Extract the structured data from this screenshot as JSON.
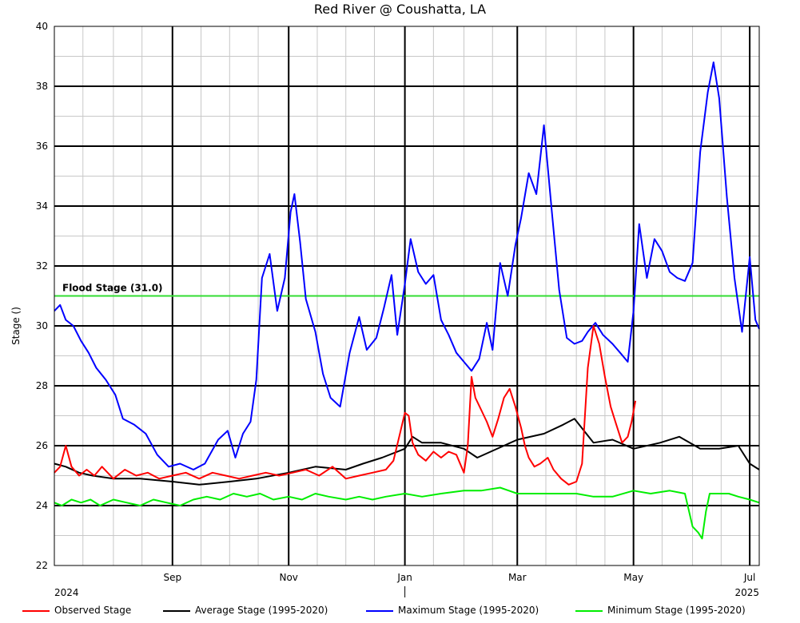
{
  "chart_data": {
    "type": "line",
    "title": "Red River @ Coushatta, LA",
    "ylabel": "Stage ()",
    "xlabel": "",
    "ylim": [
      22,
      40
    ],
    "yticks": [
      22,
      24,
      26,
      28,
      30,
      32,
      34,
      36,
      38,
      40
    ],
    "grid": true,
    "legend_position": "bottom",
    "x_start": "2024-07-01",
    "x_end": "2025-07-06",
    "month_tick_labels": [
      {
        "date": "2024-09-01",
        "label": "Sep"
      },
      {
        "date": "2024-11-01",
        "label": "Nov"
      },
      {
        "date": "2025-01-01",
        "label": "Jan"
      },
      {
        "date": "2025-03-01",
        "label": "Mar"
      },
      {
        "date": "2025-05-01",
        "label": "May"
      },
      {
        "date": "2025-07-01",
        "label": "Jul"
      }
    ],
    "year_labels": [
      {
        "date": "2024-07-01",
        "label": "2024",
        "align": "start"
      },
      {
        "date": "2025-07-06",
        "label": "2025",
        "align": "end"
      }
    ],
    "reference_lines": [
      {
        "label": "Flood Stage (31.0)",
        "value": 31.0,
        "color": "#33dd33"
      }
    ],
    "series": [
      {
        "name": "Observed Stage",
        "color": "#ff0000",
        "points": [
          [
            "2024-07-01",
            25.1
          ],
          [
            "2024-07-04",
            25.3
          ],
          [
            "2024-07-07",
            26.0
          ],
          [
            "2024-07-10",
            25.3
          ],
          [
            "2024-07-14",
            25.0
          ],
          [
            "2024-07-18",
            25.2
          ],
          [
            "2024-07-22",
            25.0
          ],
          [
            "2024-07-26",
            25.3
          ],
          [
            "2024-08-01",
            24.9
          ],
          [
            "2024-08-07",
            25.2
          ],
          [
            "2024-08-13",
            25.0
          ],
          [
            "2024-08-19",
            25.1
          ],
          [
            "2024-08-25",
            24.9
          ],
          [
            "2024-09-01",
            25.0
          ],
          [
            "2024-09-08",
            25.1
          ],
          [
            "2024-09-15",
            24.9
          ],
          [
            "2024-09-22",
            25.1
          ],
          [
            "2024-09-29",
            25.0
          ],
          [
            "2024-10-06",
            24.9
          ],
          [
            "2024-10-13",
            25.0
          ],
          [
            "2024-10-20",
            25.1
          ],
          [
            "2024-10-27",
            25.0
          ],
          [
            "2024-11-03",
            25.1
          ],
          [
            "2024-11-10",
            25.2
          ],
          [
            "2024-11-17",
            25.0
          ],
          [
            "2024-11-24",
            25.3
          ],
          [
            "2024-12-01",
            24.9
          ],
          [
            "2024-12-08",
            25.0
          ],
          [
            "2024-12-15",
            25.1
          ],
          [
            "2024-12-22",
            25.2
          ],
          [
            "2024-12-26",
            25.5
          ],
          [
            "2024-12-29",
            26.3
          ],
          [
            "2025-01-01",
            27.1
          ],
          [
            "2025-01-03",
            27.0
          ],
          [
            "2025-01-05",
            26.1
          ],
          [
            "2025-01-08",
            25.7
          ],
          [
            "2025-01-12",
            25.5
          ],
          [
            "2025-01-16",
            25.8
          ],
          [
            "2025-01-20",
            25.6
          ],
          [
            "2025-01-24",
            25.8
          ],
          [
            "2025-01-28",
            25.7
          ],
          [
            "2025-02-01",
            25.1
          ],
          [
            "2025-02-03",
            26.0
          ],
          [
            "2025-02-05",
            28.3
          ],
          [
            "2025-02-07",
            27.6
          ],
          [
            "2025-02-10",
            27.2
          ],
          [
            "2025-02-13",
            26.8
          ],
          [
            "2025-02-16",
            26.3
          ],
          [
            "2025-02-19",
            26.9
          ],
          [
            "2025-02-22",
            27.6
          ],
          [
            "2025-02-25",
            27.9
          ],
          [
            "2025-02-28",
            27.3
          ],
          [
            "2025-03-03",
            26.6
          ],
          [
            "2025-03-05",
            26.0
          ],
          [
            "2025-03-07",
            25.6
          ],
          [
            "2025-03-10",
            25.3
          ],
          [
            "2025-03-13",
            25.4
          ],
          [
            "2025-03-17",
            25.6
          ],
          [
            "2025-03-20",
            25.2
          ],
          [
            "2025-03-24",
            24.9
          ],
          [
            "2025-03-28",
            24.7
          ],
          [
            "2025-04-01",
            24.8
          ],
          [
            "2025-04-04",
            25.4
          ],
          [
            "2025-04-07",
            28.6
          ],
          [
            "2025-04-10",
            30.0
          ],
          [
            "2025-04-13",
            29.4
          ],
          [
            "2025-04-16",
            28.3
          ],
          [
            "2025-04-19",
            27.3
          ],
          [
            "2025-04-22",
            26.7
          ],
          [
            "2025-04-25",
            26.1
          ],
          [
            "2025-04-28",
            26.3
          ],
          [
            "2025-04-30",
            26.8
          ],
          [
            "2025-05-02",
            27.5
          ]
        ]
      },
      {
        "name": "Average Stage (1995-2020)",
        "color": "#000000",
        "points": [
          [
            "2024-07-01",
            25.4
          ],
          [
            "2024-07-07",
            25.3
          ],
          [
            "2024-07-14",
            25.1
          ],
          [
            "2024-07-21",
            25.0
          ],
          [
            "2024-08-01",
            24.9
          ],
          [
            "2024-08-15",
            24.9
          ],
          [
            "2024-09-01",
            24.8
          ],
          [
            "2024-09-15",
            24.7
          ],
          [
            "2024-10-01",
            24.8
          ],
          [
            "2024-10-15",
            24.9
          ],
          [
            "2024-11-01",
            25.1
          ],
          [
            "2024-11-15",
            25.3
          ],
          [
            "2024-12-01",
            25.2
          ],
          [
            "2024-12-10",
            25.4
          ],
          [
            "2024-12-20",
            25.6
          ],
          [
            "2025-01-01",
            25.9
          ],
          [
            "2025-01-05",
            26.3
          ],
          [
            "2025-01-10",
            26.1
          ],
          [
            "2025-01-20",
            26.1
          ],
          [
            "2025-02-01",
            25.9
          ],
          [
            "2025-02-08",
            25.6
          ],
          [
            "2025-02-15",
            25.8
          ],
          [
            "2025-03-01",
            26.2
          ],
          [
            "2025-03-15",
            26.4
          ],
          [
            "2025-03-25",
            26.7
          ],
          [
            "2025-03-31",
            26.9
          ],
          [
            "2025-04-05",
            26.5
          ],
          [
            "2025-04-10",
            26.1
          ],
          [
            "2025-04-20",
            26.2
          ],
          [
            "2025-05-01",
            25.9
          ],
          [
            "2025-05-15",
            26.1
          ],
          [
            "2025-05-25",
            26.3
          ],
          [
            "2025-06-05",
            25.9
          ],
          [
            "2025-06-15",
            25.9
          ],
          [
            "2025-06-25",
            26.0
          ],
          [
            "2025-07-01",
            25.4
          ],
          [
            "2025-07-06",
            25.2
          ]
        ]
      },
      {
        "name": "Maximum Stage (1995-2020)",
        "color": "#0000ff",
        "points": [
          [
            "2024-07-01",
            30.5
          ],
          [
            "2024-07-04",
            30.7
          ],
          [
            "2024-07-07",
            30.2
          ],
          [
            "2024-07-11",
            30.0
          ],
          [
            "2024-07-15",
            29.5
          ],
          [
            "2024-07-19",
            29.1
          ],
          [
            "2024-07-23",
            28.6
          ],
          [
            "2024-07-28",
            28.2
          ],
          [
            "2024-08-02",
            27.7
          ],
          [
            "2024-08-06",
            26.9
          ],
          [
            "2024-08-12",
            26.7
          ],
          [
            "2024-08-18",
            26.4
          ],
          [
            "2024-08-24",
            25.7
          ],
          [
            "2024-08-30",
            25.3
          ],
          [
            "2024-09-05",
            25.4
          ],
          [
            "2024-09-12",
            25.2
          ],
          [
            "2024-09-18",
            25.4
          ],
          [
            "2024-09-25",
            26.2
          ],
          [
            "2024-09-30",
            26.5
          ],
          [
            "2024-10-04",
            25.6
          ],
          [
            "2024-10-08",
            26.4
          ],
          [
            "2024-10-12",
            26.8
          ],
          [
            "2024-10-15",
            28.2
          ],
          [
            "2024-10-18",
            31.6
          ],
          [
            "2024-10-22",
            32.4
          ],
          [
            "2024-10-26",
            30.5
          ],
          [
            "2024-10-30",
            31.6
          ],
          [
            "2024-11-02",
            33.8
          ],
          [
            "2024-11-04",
            34.4
          ],
          [
            "2024-11-07",
            32.8
          ],
          [
            "2024-11-10",
            30.9
          ],
          [
            "2024-11-15",
            29.8
          ],
          [
            "2024-11-19",
            28.4
          ],
          [
            "2024-11-23",
            27.6
          ],
          [
            "2024-11-28",
            27.3
          ],
          [
            "2024-12-03",
            29.1
          ],
          [
            "2024-12-08",
            30.3
          ],
          [
            "2024-12-12",
            29.2
          ],
          [
            "2024-12-17",
            29.6
          ],
          [
            "2024-12-21",
            30.6
          ],
          [
            "2024-12-25",
            31.7
          ],
          [
            "2024-12-28",
            29.7
          ],
          [
            "2025-01-01",
            31.4
          ],
          [
            "2025-01-04",
            32.9
          ],
          [
            "2025-01-08",
            31.8
          ],
          [
            "2025-01-12",
            31.4
          ],
          [
            "2025-01-16",
            31.7
          ],
          [
            "2025-01-20",
            30.2
          ],
          [
            "2025-01-24",
            29.7
          ],
          [
            "2025-01-28",
            29.1
          ],
          [
            "2025-02-01",
            28.8
          ],
          [
            "2025-02-05",
            28.5
          ],
          [
            "2025-02-09",
            28.9
          ],
          [
            "2025-02-13",
            30.1
          ],
          [
            "2025-02-16",
            29.2
          ],
          [
            "2025-02-20",
            32.1
          ],
          [
            "2025-02-24",
            31.0
          ],
          [
            "2025-02-28",
            32.7
          ],
          [
            "2025-03-03",
            33.6
          ],
          [
            "2025-03-07",
            35.1
          ],
          [
            "2025-03-11",
            34.4
          ],
          [
            "2025-03-15",
            36.7
          ],
          [
            "2025-03-19",
            33.9
          ],
          [
            "2025-03-23",
            31.2
          ],
          [
            "2025-03-27",
            29.6
          ],
          [
            "2025-03-31",
            29.4
          ],
          [
            "2025-04-04",
            29.5
          ],
          [
            "2025-04-07",
            29.8
          ],
          [
            "2025-04-11",
            30.1
          ],
          [
            "2025-04-15",
            29.7
          ],
          [
            "2025-04-20",
            29.4
          ],
          [
            "2025-04-24",
            29.1
          ],
          [
            "2025-04-28",
            28.8
          ],
          [
            "2025-05-01",
            30.5
          ],
          [
            "2025-05-04",
            33.4
          ],
          [
            "2025-05-08",
            31.6
          ],
          [
            "2025-05-12",
            32.9
          ],
          [
            "2025-05-16",
            32.5
          ],
          [
            "2025-05-20",
            31.8
          ],
          [
            "2025-05-24",
            31.6
          ],
          [
            "2025-05-28",
            31.5
          ],
          [
            "2025-06-01",
            32.1
          ],
          [
            "2025-06-05",
            35.8
          ],
          [
            "2025-06-09",
            37.8
          ],
          [
            "2025-06-12",
            38.8
          ],
          [
            "2025-06-15",
            37.6
          ],
          [
            "2025-06-19",
            34.3
          ],
          [
            "2025-06-23",
            31.6
          ],
          [
            "2025-06-27",
            29.8
          ],
          [
            "2025-07-01",
            32.3
          ],
          [
            "2025-07-04",
            30.2
          ],
          [
            "2025-07-06",
            29.9
          ]
        ]
      },
      {
        "name": "Minimum Stage (1995-2020)",
        "color": "#00ee00",
        "points": [
          [
            "2024-07-01",
            24.1
          ],
          [
            "2024-07-05",
            24.0
          ],
          [
            "2024-07-10",
            24.2
          ],
          [
            "2024-07-15",
            24.1
          ],
          [
            "2024-07-20",
            24.2
          ],
          [
            "2024-07-25",
            24.0
          ],
          [
            "2024-08-01",
            24.2
          ],
          [
            "2024-08-08",
            24.1
          ],
          [
            "2024-08-15",
            24.0
          ],
          [
            "2024-08-22",
            24.2
          ],
          [
            "2024-08-29",
            24.1
          ],
          [
            "2024-09-05",
            24.0
          ],
          [
            "2024-09-12",
            24.2
          ],
          [
            "2024-09-19",
            24.3
          ],
          [
            "2024-09-26",
            24.2
          ],
          [
            "2024-10-03",
            24.4
          ],
          [
            "2024-10-10",
            24.3
          ],
          [
            "2024-10-17",
            24.4
          ],
          [
            "2024-10-24",
            24.2
          ],
          [
            "2024-11-01",
            24.3
          ],
          [
            "2024-11-08",
            24.2
          ],
          [
            "2024-11-15",
            24.4
          ],
          [
            "2024-11-22",
            24.3
          ],
          [
            "2024-12-01",
            24.2
          ],
          [
            "2024-12-08",
            24.3
          ],
          [
            "2024-12-15",
            24.2
          ],
          [
            "2024-12-22",
            24.3
          ],
          [
            "2025-01-01",
            24.4
          ],
          [
            "2025-01-10",
            24.3
          ],
          [
            "2025-01-20",
            24.4
          ],
          [
            "2025-02-01",
            24.5
          ],
          [
            "2025-02-10",
            24.5
          ],
          [
            "2025-02-20",
            24.6
          ],
          [
            "2025-03-01",
            24.4
          ],
          [
            "2025-03-10",
            24.4
          ],
          [
            "2025-03-20",
            24.4
          ],
          [
            "2025-04-01",
            24.4
          ],
          [
            "2025-04-10",
            24.3
          ],
          [
            "2025-04-20",
            24.3
          ],
          [
            "2025-05-01",
            24.5
          ],
          [
            "2025-05-10",
            24.4
          ],
          [
            "2025-05-20",
            24.5
          ],
          [
            "2025-05-28",
            24.4
          ],
          [
            "2025-06-01",
            23.3
          ],
          [
            "2025-06-04",
            23.1
          ],
          [
            "2025-06-06",
            22.9
          ],
          [
            "2025-06-08",
            23.8
          ],
          [
            "2025-06-10",
            24.4
          ],
          [
            "2025-06-15",
            24.4
          ],
          [
            "2025-06-20",
            24.4
          ],
          [
            "2025-06-25",
            24.3
          ],
          [
            "2025-07-01",
            24.2
          ],
          [
            "2025-07-06",
            24.1
          ]
        ]
      }
    ]
  }
}
